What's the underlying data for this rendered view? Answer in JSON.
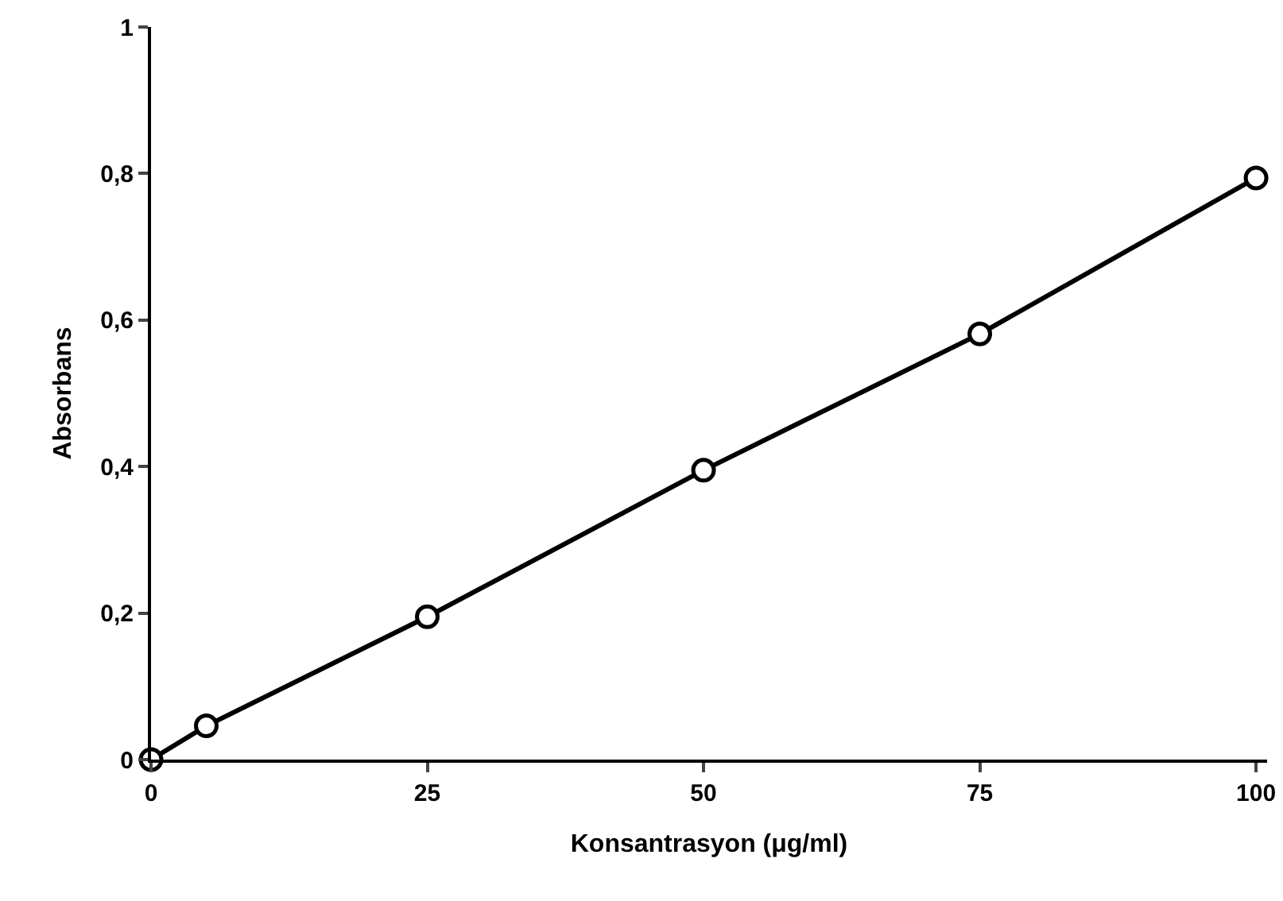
{
  "chart_data": {
    "type": "line",
    "xlabel": "Konsantrasyon (μg/ml)",
    "ylabel": "Absorbans",
    "x": [
      0,
      5,
      25,
      50,
      75,
      100
    ],
    "series": [
      {
        "color": "#000000",
        "values": [
          0,
          0.046,
          0.195,
          0.395,
          0.581,
          0.794
        ]
      }
    ],
    "xlim": [
      0,
      101
    ],
    "ylim": [
      0,
      1
    ],
    "xticks": [
      0,
      25,
      50,
      75,
      100
    ],
    "yticks": [
      0,
      {
        "value": 0.2,
        "label": "0,2"
      },
      {
        "value": 0.4,
        "label": "0,4"
      },
      {
        "value": 0.6,
        "label": "0,6"
      },
      {
        "value": 0.8,
        "label": "0,8"
      },
      1
    ],
    "marker": "circle",
    "line_style": "solid"
  }
}
